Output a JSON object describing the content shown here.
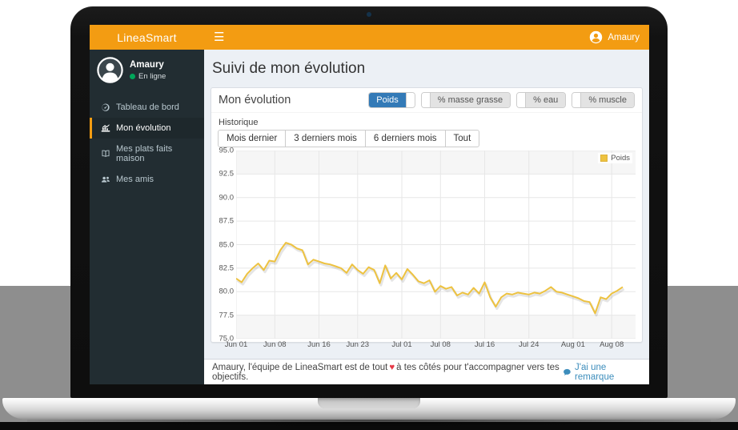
{
  "header": {
    "brand": "LineaSmart",
    "user": "Amaury"
  },
  "sidebar": {
    "user": {
      "name": "Amaury",
      "status": "En ligne"
    },
    "items": [
      {
        "label": "Tableau de bord",
        "icon": "gauge-icon",
        "active": false
      },
      {
        "label": "Mon évolution",
        "icon": "chart-icon",
        "active": true
      },
      {
        "label": "Mes plats faits maison",
        "icon": "book-icon",
        "active": false
      },
      {
        "label": "Mes amis",
        "icon": "users-icon",
        "active": false
      }
    ]
  },
  "main": {
    "page_title": "Suivi de mon évolution",
    "box": {
      "title": "Mon évolution",
      "toggles": [
        {
          "label": "Poids",
          "active": true
        },
        {
          "label": "% masse grasse",
          "active": false
        },
        {
          "label": "% eau",
          "active": false
        },
        {
          "label": "% muscle",
          "active": false
        }
      ],
      "history": {
        "label": "Historique",
        "ranges": [
          "Mois dernier",
          "3 derniers mois",
          "6 derniers mois",
          "Tout"
        ]
      }
    }
  },
  "footer": {
    "message_start": "Amaury, l'équipe de LineaSmart est de tout",
    "heart": "♥",
    "message_end": "à tes côtés pour t'accompagner vers tes objectifs.",
    "link": "J'ai une remarque"
  },
  "chart_data": {
    "type": "line",
    "title": "",
    "xlabel": "",
    "ylabel": "",
    "ylim": [
      75.0,
      95.0
    ],
    "grid": true,
    "legend_position": "top-right",
    "legend_label": "Poids",
    "line_color": "#edc240",
    "shade_rows": [
      [
        95.0,
        92.5
      ],
      [
        77.5,
        75.0
      ]
    ],
    "y_ticks": [
      95.0,
      92.5,
      90.0,
      87.5,
      85.0,
      82.5,
      80.0,
      77.5,
      75.0
    ],
    "x_ticks": [
      {
        "day": 0,
        "label": "Jun 01"
      },
      {
        "day": 7,
        "label": "Jun 08"
      },
      {
        "day": 15,
        "label": "Jun 16"
      },
      {
        "day": 22,
        "label": "Jun 23"
      },
      {
        "day": 30,
        "label": "Jul 01"
      },
      {
        "day": 37,
        "label": "Jul 08"
      },
      {
        "day": 45,
        "label": "Jul 16"
      },
      {
        "day": 53,
        "label": "Jul 24"
      },
      {
        "day": 61,
        "label": "Aug 01"
      },
      {
        "day": 68,
        "label": "Aug 08"
      }
    ],
    "series": [
      {
        "name": "Poids",
        "x_start": "Jun 01",
        "interval_days": 1,
        "values": [
          81.4,
          81.0,
          81.9,
          82.5,
          83.0,
          82.3,
          83.3,
          83.2,
          84.4,
          85.2,
          85.0,
          84.6,
          84.4,
          82.9,
          83.4,
          83.2,
          83.0,
          82.9,
          82.7,
          82.5,
          82.0,
          82.9,
          82.3,
          81.9,
          82.6,
          82.3,
          80.9,
          82.8,
          81.4,
          82.0,
          81.3,
          82.4,
          81.8,
          81.1,
          80.9,
          81.2,
          80.0,
          80.6,
          80.3,
          80.5,
          79.6,
          79.9,
          79.7,
          80.4,
          79.8,
          81.0,
          79.4,
          78.4,
          79.4,
          79.8,
          79.7,
          79.9,
          79.8,
          79.7,
          79.9,
          79.8,
          80.1,
          80.5,
          80.0,
          79.9,
          79.7,
          79.5,
          79.3,
          79.0,
          78.9,
          77.7,
          79.4,
          79.2,
          79.8,
          80.1,
          80.5
        ]
      }
    ]
  },
  "colors": {
    "accent": "#f39c12",
    "sidebar": "#222d32",
    "toggle_active": "#337ab7",
    "link": "#3c8dbc",
    "line": "#edc240",
    "heart": "#e63946",
    "online": "#00a65a"
  }
}
